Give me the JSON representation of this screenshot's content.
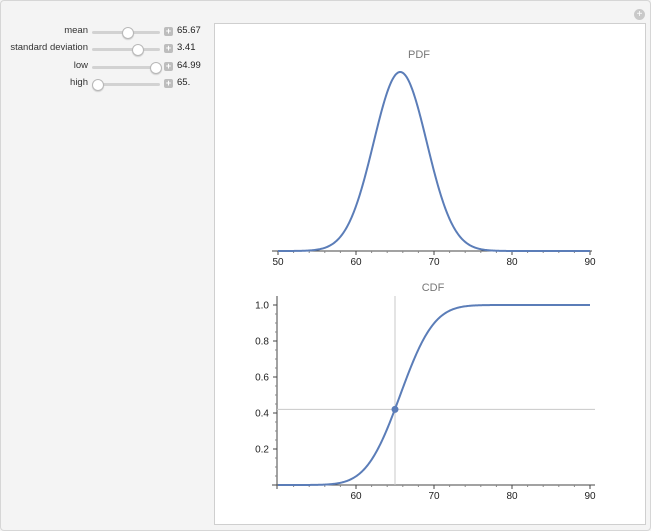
{
  "controls": [
    {
      "id": "mean",
      "label": "mean",
      "value": "65.67",
      "fraction": 0.52
    },
    {
      "id": "standard-deviation",
      "label": "standard deviation",
      "value": "3.41",
      "fraction": 0.66
    },
    {
      "id": "low",
      "label": "low",
      "value": "64.99",
      "fraction": 0.92
    },
    {
      "id": "high",
      "label": "high",
      "value": "65.",
      "fraction": 0.08
    }
  ],
  "chart_data": [
    {
      "type": "line",
      "title": "PDF",
      "xlabel": "",
      "ylabel": "",
      "xlim": [
        50,
        90
      ],
      "x_ticks": [
        "50",
        "60",
        "70",
        "80",
        "90"
      ],
      "y_ticks": [],
      "distribution": {
        "mean": 65.67,
        "sd": 3.41
      },
      "color": "#5b7db8"
    },
    {
      "type": "line",
      "title": "CDF",
      "xlabel": "",
      "ylabel": "",
      "xlim": [
        50,
        90
      ],
      "ylim": [
        0,
        1.05
      ],
      "x_ticks": [
        "60",
        "70",
        "80",
        "90"
      ],
      "y_ticks": [
        "0.2",
        "0.4",
        "0.6",
        "0.8",
        "1.0"
      ],
      "distribution": {
        "mean": 65.67,
        "sd": 3.41
      },
      "marker": {
        "x": 65,
        "y": 0.42
      },
      "color": "#5b7db8",
      "grid": false
    }
  ]
}
